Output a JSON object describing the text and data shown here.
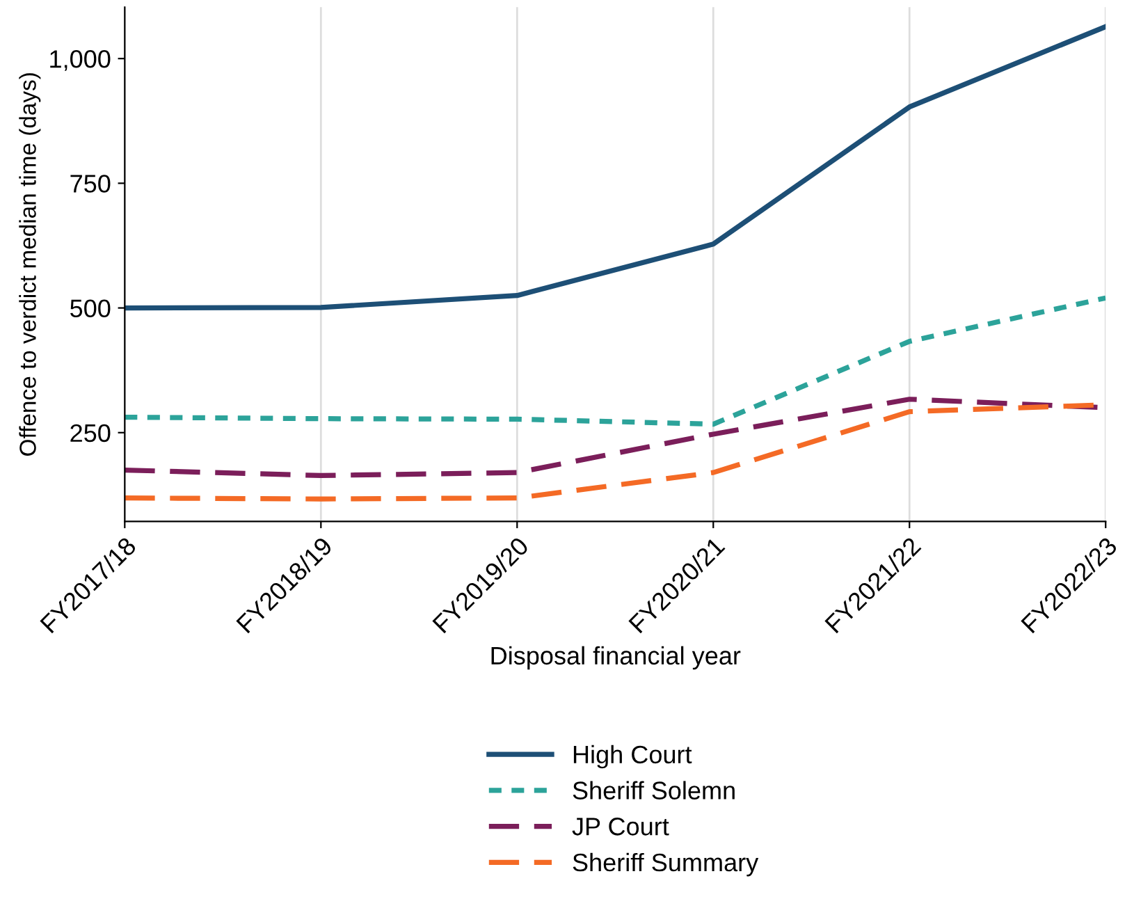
{
  "chart_data": {
    "type": "line",
    "xlabel": "Disposal financial year",
    "ylabel": "Offence to verdict median time (days)",
    "categories": [
      "FY2017/18",
      "FY2018/19",
      "FY2019/20",
      "FY2020/21",
      "FY2021/22",
      "FY2022/23"
    ],
    "series": [
      {
        "name": "High Court",
        "color": "#1d4f76",
        "line_style": "solid",
        "values": [
          500,
          501,
          525,
          628,
          903,
          1064
        ]
      },
      {
        "name": "Sheriff Solemn",
        "color": "#2ca39a",
        "line_style": "dotted",
        "values": [
          281,
          278,
          277,
          267,
          433,
          520
        ]
      },
      {
        "name": "JP Court",
        "color": "#7b1e5a",
        "line_style": "dashed",
        "values": [
          175,
          164,
          170,
          247,
          317,
          300
        ]
      },
      {
        "name": "Sheriff Summary",
        "color": "#f46a25",
        "line_style": "dashed",
        "values": [
          119,
          117,
          119,
          170,
          292,
          306
        ]
      }
    ],
    "ylim": [
      72,
      1103
    ],
    "yticks": [
      250,
      500,
      750,
      {
        "value": 1000,
        "label": "1,000"
      }
    ],
    "grid": "x",
    "legend": "bottom",
    "marker": "none"
  }
}
